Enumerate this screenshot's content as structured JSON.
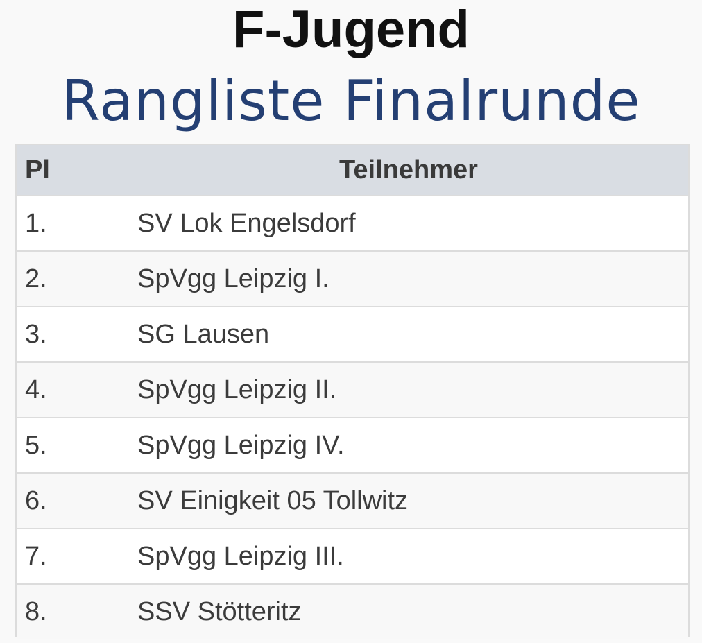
{
  "header": {
    "title": "F-Jugend",
    "subtitle": "Rangliste Finalrunde"
  },
  "table": {
    "columns": [
      "Pl",
      "Teilnehmer"
    ],
    "rows": [
      {
        "place": "1.",
        "team": "SV Lok Engelsdorf"
      },
      {
        "place": "2.",
        "team": "SpVgg Leipzig I."
      },
      {
        "place": "3.",
        "team": "SG Lausen"
      },
      {
        "place": "4.",
        "team": "SpVgg Leipzig II."
      },
      {
        "place": "5.",
        "team": "SpVgg Leipzig IV."
      },
      {
        "place": "6.",
        "team": "SV Einigkeit 05 Tollwitz"
      },
      {
        "place": "7.",
        "team": "SpVgg Leipzig III."
      },
      {
        "place": "8.",
        "team": "SSV Stötteritz"
      }
    ]
  },
  "colors": {
    "subtitle": "#243f73",
    "header_bg": "#d9dde3"
  }
}
